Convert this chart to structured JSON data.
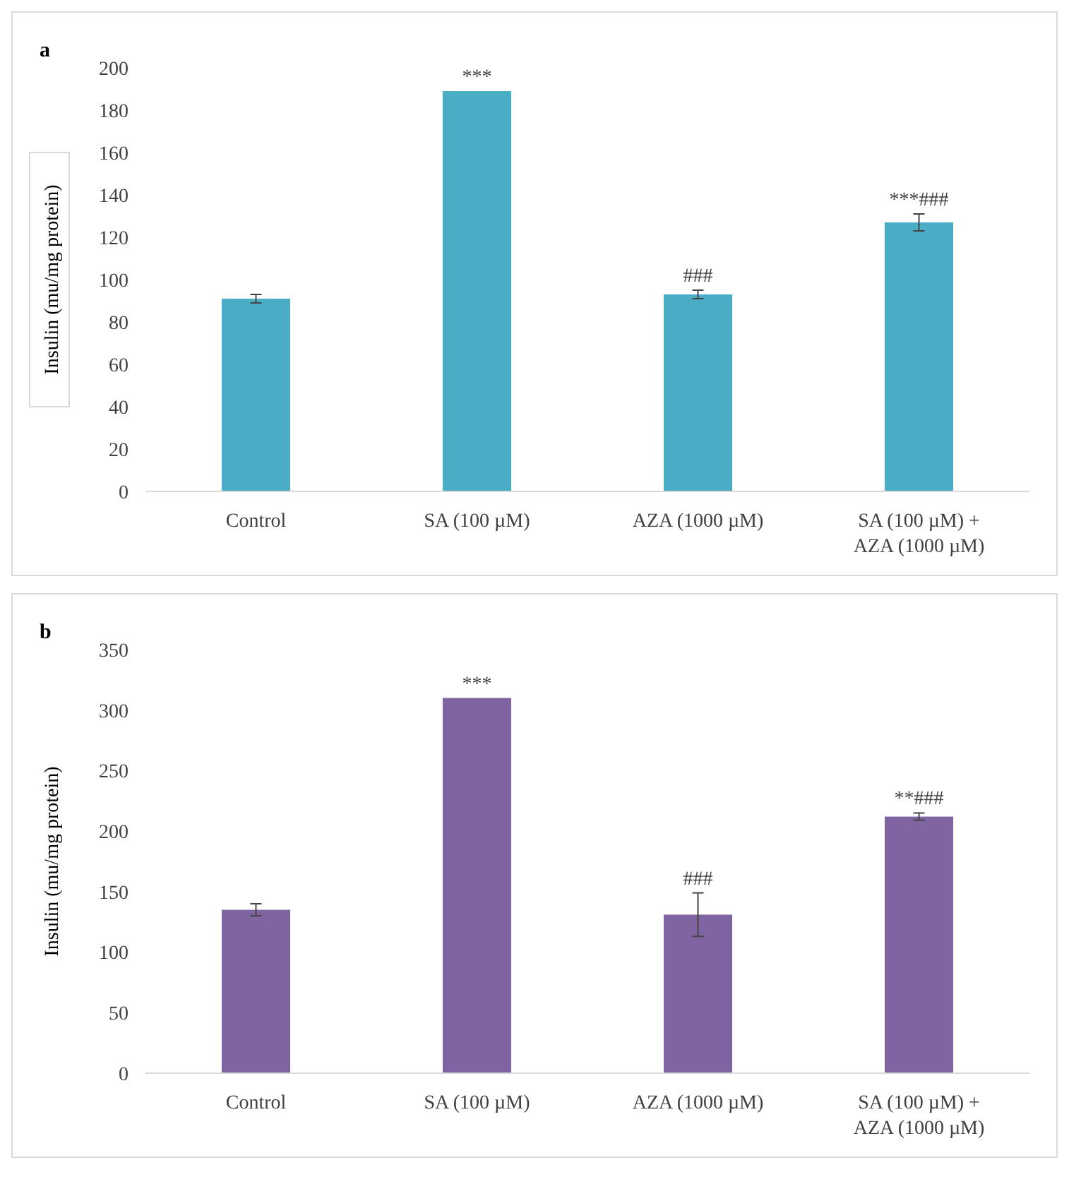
{
  "chart_data": [
    {
      "type": "bar",
      "title": "a",
      "ylabel": "Insulin (mu/mg protein)",
      "categories": [
        "Control",
        "SA (100 µM)",
        "AZA (1000 µM)",
        "SA (100 µM) + AZA (1000 µM)"
      ],
      "values": [
        91,
        189,
        93,
        127
      ],
      "errors": [
        2,
        null,
        2,
        4
      ],
      "color": "#4bacc6",
      "ylim": [
        0,
        200
      ],
      "yticks": [
        0,
        20,
        40,
        60,
        80,
        100,
        120,
        140,
        160,
        180,
        200
      ],
      "grid": false,
      "annotations": [
        {
          "text": "***",
          "x": "SA (100 µM)",
          "y": 189
        },
        {
          "text": "###",
          "x": "AZA (1000 µM)",
          "y": 93
        },
        {
          "text": "***###",
          "x": "SA (100 µM) + AZA (1000 µM)",
          "y": 127
        }
      ]
    },
    {
      "type": "bar",
      "title": "b",
      "ylabel": "Insulin (mu/mg protein)",
      "categories": [
        "Control",
        "SA (100 µM)",
        "AZA (1000 µM)",
        "SA (100 µM) + AZA (1000 µM)"
      ],
      "values": [
        135,
        310,
        131,
        212
      ],
      "errors": [
        5,
        null,
        18,
        3
      ],
      "color": "#8064a2",
      "ylim": [
        0,
        350
      ],
      "yticks": [
        0,
        50,
        100,
        150,
        200,
        250,
        300,
        350
      ],
      "grid": false,
      "annotations": [
        {
          "text": "***",
          "x": "SA (100 µM)",
          "y": 310
        },
        {
          "text": "###",
          "x": "AZA (1000 µM)",
          "y": 131
        },
        {
          "text": "**###",
          "x": "SA (100 µM) + AZA (1000 µM)",
          "y": 212
        }
      ]
    }
  ]
}
